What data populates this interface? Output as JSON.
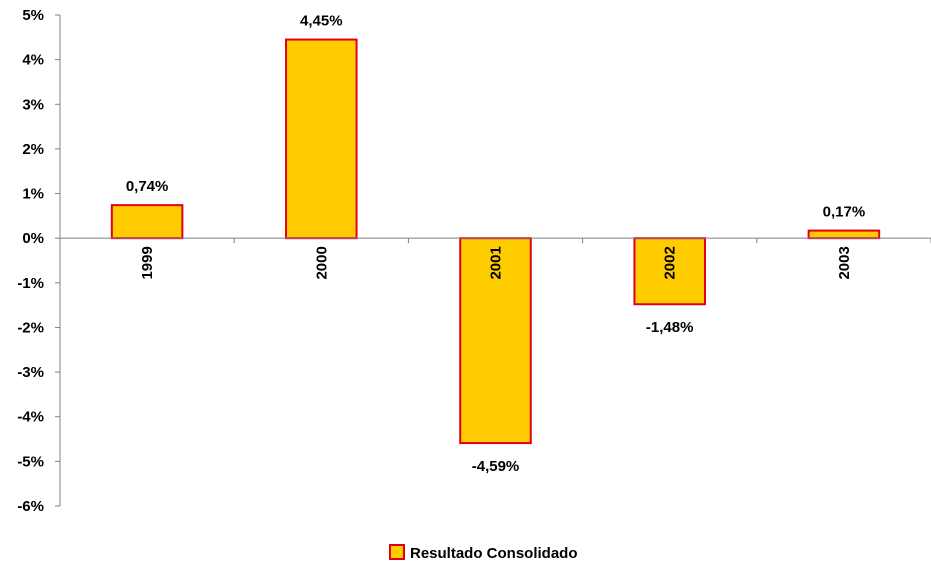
{
  "chart_data": {
    "type": "bar",
    "categories": [
      "1999",
      "2000",
      "2001",
      "2002",
      "2003"
    ],
    "series": [
      {
        "name": "Resultado Consolidado",
        "values": [
          0.74,
          4.45,
          -4.59,
          -1.48,
          0.17
        ],
        "labels": [
          "0,74%",
          "4,45%",
          "-4,59%",
          "-1,48%",
          "0,17%"
        ]
      }
    ],
    "ylim": [
      -6,
      5
    ],
    "yticks": [
      5,
      4,
      3,
      2,
      1,
      0,
      -1,
      -2,
      -3,
      -4,
      -5,
      -6
    ],
    "ytick_labels": [
      "5%",
      "4%",
      "3%",
      "2%",
      "1%",
      "0%",
      "-1%",
      "-2%",
      "-3%",
      "-4%",
      "-5%",
      "-6%"
    ],
    "grid": false,
    "legend_position": "bottom",
    "colors": {
      "bar_fill": "#FFCC00",
      "bar_stroke": "#E0001B",
      "axis": "#808080"
    }
  }
}
